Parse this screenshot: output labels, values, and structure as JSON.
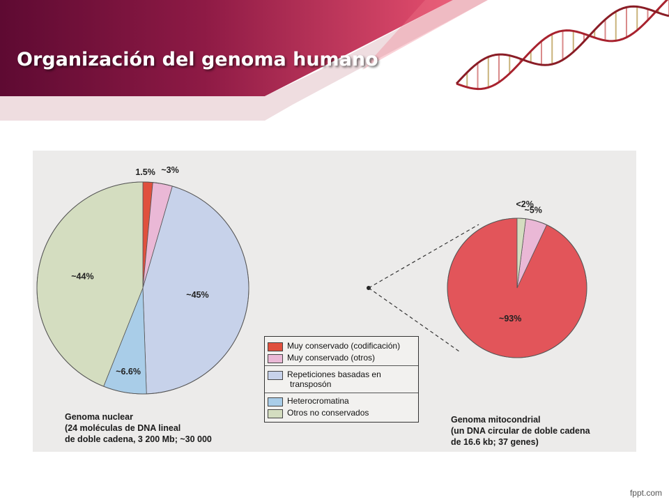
{
  "slide": {
    "title": "Organización del genoma humano",
    "footer": "fppt.com"
  },
  "colors": {
    "banner_dark": "#5e0a32",
    "banner_light": "#c5305a",
    "coding": "#e0503e",
    "conserved_other": "#eab8d6",
    "repeats": "#c7d2ea",
    "heterochromatin": "#a9cde8",
    "nonconserved": "#d4ddc0",
    "mito_red": "#e2555a",
    "figure_bg": "#ecebea"
  },
  "chart_data": [
    {
      "type": "pie",
      "title": "Genoma nuclear",
      "slices": [
        {
          "label": "1.5%",
          "value": 1.5,
          "category": "Muy conservado (codificación)",
          "color": "#e0503e"
        },
        {
          "label": "~3%",
          "value": 3,
          "category": "Muy conservado (otros)",
          "color": "#eab8d6"
        },
        {
          "label": "~45%",
          "value": 45,
          "category": "Repeticiones basadas en transposón",
          "color": "#c7d2ea"
        },
        {
          "label": "~6.6%",
          "value": 6.6,
          "category": "Heterocromatina",
          "color": "#a9cde8"
        },
        {
          "label": "~44%",
          "value": 44,
          "category": "Otros no conservados",
          "color": "#d4ddc0"
        }
      ],
      "caption": [
        "Genoma nuclear",
        "(24 moléculas de DNA lineal",
        "de doble cadena, 3 200 Mb; ~30 000"
      ]
    },
    {
      "type": "pie",
      "title": "Genoma mitocondrial",
      "slices": [
        {
          "label": "~93%",
          "value": 93,
          "category": "Muy conservado (codificación)",
          "color": "#e2555a"
        },
        {
          "label": "~5%",
          "value": 5,
          "category": "Muy conservado (otros)",
          "color": "#eab8d6"
        },
        {
          "label": "<2%",
          "value": 2,
          "category": "Otros no conservados",
          "color": "#d4ddc0"
        }
      ],
      "caption": [
        "Genoma mitocondrial",
        "(un DNA circular de doble cadena",
        "de 16.6 kb; 37 genes)"
      ]
    }
  ],
  "legend": {
    "items": [
      {
        "label": "Muy conservado (codificación)",
        "color": "#e0503e"
      },
      {
        "label": "Muy conservado (otros)",
        "color": "#eab8d6"
      },
      {
        "label": "Repeticiones basadas en",
        "label2": "transposón",
        "color": "#c7d2ea"
      },
      {
        "label": "Heterocromatina",
        "color": "#a9cde8"
      },
      {
        "label": "Otros no conservados",
        "color": "#d4ddc0"
      }
    ]
  }
}
